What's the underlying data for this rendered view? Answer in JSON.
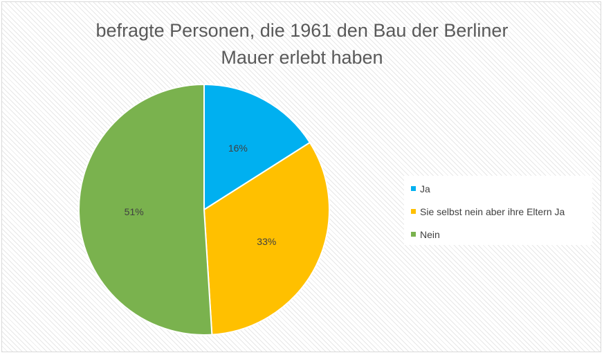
{
  "chart_data": {
    "type": "pie",
    "title": "befragte Personen, die 1961 den Bau der Berliner\nMauer erlebt haben",
    "categories": [
      "Ja",
      "Sie selbst nein aber ihre Eltern Ja",
      "Nein"
    ],
    "values": [
      16,
      33,
      51
    ],
    "value_labels": [
      "16%",
      "33%",
      "51%"
    ],
    "colors": [
      "#00b0f0",
      "#ffc000",
      "#7ab24e"
    ],
    "legend_position": "right",
    "start_angle": "12 o'clock, clockwise"
  }
}
